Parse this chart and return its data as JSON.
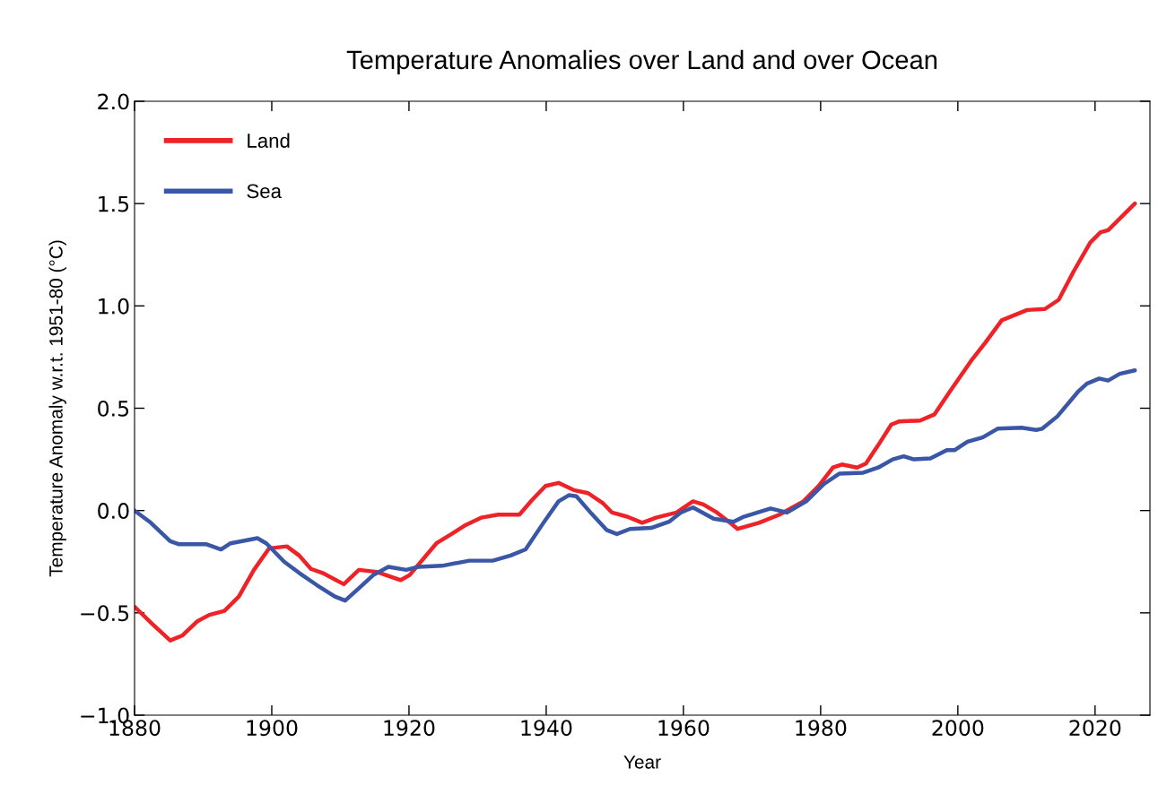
{
  "chart_data": {
    "type": "line",
    "title": "Temperature Anomalies over Land and over Ocean",
    "xlabel": "Year",
    "ylabel": "Temperature Anomaly w.r.t. 1951-80 (°C)",
    "xlim": [
      1880,
      2028
    ],
    "xticks": [
      1880,
      1900,
      1920,
      1940,
      1960,
      1980,
      2000,
      2020
    ],
    "ylim": [
      -1.0,
      2.0
    ],
    "yticks": [
      {
        "value": -1.0,
        "label": "−1.0"
      },
      {
        "value": -0.5,
        "label": "−0.5"
      },
      {
        "value": 0.0,
        "label": "0.0"
      },
      {
        "value": 0.5,
        "label": "0.5"
      },
      {
        "value": 1.0,
        "label": "1.0"
      },
      {
        "value": 1.5,
        "label": "1.5"
      },
      {
        "value": 2.0,
        "label": "2.0"
      }
    ],
    "grid": false,
    "legend": "top left",
    "marker": "none",
    "line_style": "solid",
    "series": [
      {
        "name": "Land",
        "color": "#ee2227",
        "x": [
          1880,
          1882.6,
          1885.2,
          1887,
          1889.2,
          1890.9,
          1893.1,
          1895.2,
          1897.4,
          1899.6,
          1902.2,
          1904,
          1905.7,
          1907.4,
          1910.5,
          1912.7,
          1915.3,
          1918.8,
          1920.1,
          1924,
          1926.2,
          1928.3,
          1930.5,
          1933,
          1935,
          1936.1,
          1937.9,
          1939.9,
          1941.8,
          1944,
          1946.1,
          1948.3,
          1949.6,
          1951.8,
          1954,
          1956,
          1959,
          1961.4,
          1962.9,
          1964.9,
          1967,
          1967.9,
          1971,
          1974,
          1977.5,
          1979.7,
          1981.8,
          1983.1,
          1985.3,
          1986.6,
          1988.4,
          1990.3,
          1991.4,
          1994.5,
          1996.6,
          1998.8,
          2001.9,
          2004,
          2006.4,
          2010.1,
          2012.7,
          2014.7,
          2016.9,
          2019.3,
          2020.8,
          2021.9,
          2025.8
        ],
        "values": [
          -0.47,
          -0.555,
          -0.635,
          -0.61,
          -0.54,
          -0.51,
          -0.49,
          -0.42,
          -0.29,
          -0.185,
          -0.175,
          -0.22,
          -0.285,
          -0.305,
          -0.36,
          -0.29,
          -0.3,
          -0.34,
          -0.315,
          -0.16,
          -0.115,
          -0.07,
          -0.035,
          -0.02,
          -0.02,
          -0.02,
          0.05,
          0.12,
          0.135,
          0.1,
          0.085,
          0.035,
          -0.01,
          -0.03,
          -0.06,
          -0.035,
          -0.01,
          0.045,
          0.03,
          -0.01,
          -0.065,
          -0.09,
          -0.06,
          -0.02,
          0.045,
          0.12,
          0.21,
          0.225,
          0.21,
          0.23,
          0.32,
          0.42,
          0.435,
          0.44,
          0.47,
          0.58,
          0.73,
          0.82,
          0.93,
          0.98,
          0.985,
          1.03,
          1.17,
          1.31,
          1.36,
          1.37,
          1.5
        ]
      },
      {
        "name": "Sea",
        "color": "#3a56a6",
        "x": [
          1880,
          1882.2,
          1885.2,
          1886.5,
          1890.5,
          1892.6,
          1894,
          1897.9,
          1899.2,
          1901.8,
          1904,
          1906.6,
          1909.2,
          1910.7,
          1912.7,
          1914.8,
          1917,
          1919.6,
          1921.4,
          1924.8,
          1928.8,
          1932.2,
          1934.8,
          1937,
          1939.6,
          1941.8,
          1943.3,
          1944.4,
          1946.6,
          1948.8,
          1950.3,
          1952.2,
          1955.3,
          1957.9,
          1959.6,
          1961.4,
          1964.4,
          1967.3,
          1968.8,
          1972.7,
          1975.1,
          1977.9,
          1980.5,
          1982.7,
          1986.2,
          1988.4,
          1990.5,
          1992.1,
          1993.6,
          1996,
          1998.4,
          1999.5,
          2001.4,
          2003.6,
          2005.8,
          2009.3,
          2011.4,
          2012.3,
          2014.5,
          2017.5,
          2018.8,
          2020.6,
          2021.9,
          2023.6,
          2025.8
        ],
        "values": [
          0.0,
          -0.055,
          -0.15,
          -0.165,
          -0.165,
          -0.19,
          -0.16,
          -0.135,
          -0.16,
          -0.25,
          -0.305,
          -0.365,
          -0.42,
          -0.44,
          -0.38,
          -0.315,
          -0.275,
          -0.29,
          -0.275,
          -0.27,
          -0.245,
          -0.245,
          -0.22,
          -0.19,
          -0.06,
          0.045,
          0.075,
          0.07,
          -0.015,
          -0.095,
          -0.115,
          -0.09,
          -0.085,
          -0.055,
          -0.01,
          0.015,
          -0.04,
          -0.055,
          -0.03,
          0.01,
          -0.01,
          0.045,
          0.13,
          0.18,
          0.185,
          0.21,
          0.25,
          0.265,
          0.25,
          0.255,
          0.295,
          0.295,
          0.336,
          0.357,
          0.4,
          0.405,
          0.394,
          0.4,
          0.46,
          0.58,
          0.62,
          0.645,
          0.635,
          0.668,
          0.685
        ]
      }
    ]
  }
}
